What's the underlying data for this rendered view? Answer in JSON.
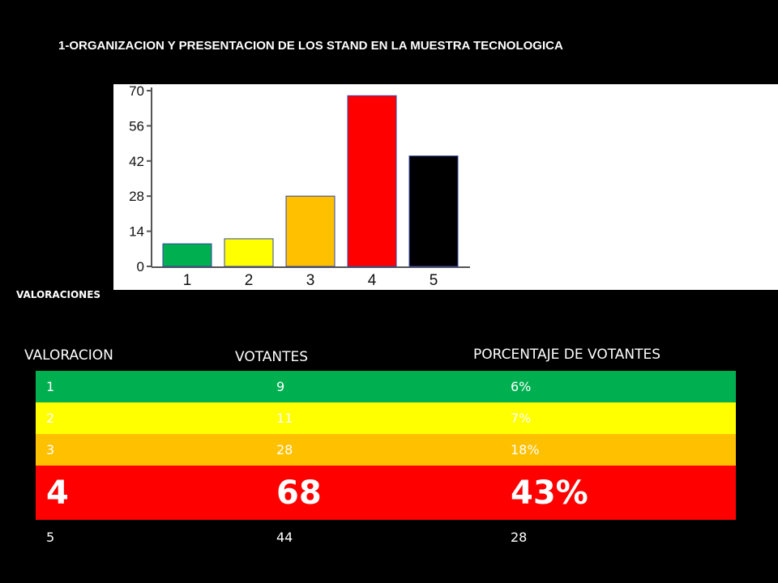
{
  "title": "1-ORGANIZACION Y PRESENTACION DE LOS STAND EN LA MUESTRA TECNOLOGICA",
  "valoraciones_label": "VALORACIONES",
  "chart_data": {
    "type": "bar",
    "categories": [
      "1",
      "2",
      "3",
      "4",
      "5"
    ],
    "values": [
      9,
      11,
      28,
      68,
      44
    ],
    "colors": [
      "#00b050",
      "#ffff00",
      "#ffc000",
      "#ff0000",
      "#000000"
    ],
    "ylim": [
      0,
      70
    ],
    "yticks": [
      0,
      14,
      28,
      42,
      56,
      70
    ],
    "grid": false,
    "legend": "none"
  },
  "table": {
    "headers": {
      "valoracion": "VALORACION",
      "votantes": "VOTANTES",
      "porcentaje": "PORCENTAJE DE  VOTANTES"
    },
    "rows": [
      {
        "valoracion": "1",
        "votantes": "9",
        "porcentaje": "6%",
        "bg": "#00b050",
        "text": "#ffffff"
      },
      {
        "valoracion": "2",
        "votantes": "11",
        "porcentaje": "7%",
        "bg": "#ffff00",
        "text": "#ffffff"
      },
      {
        "valoracion": "3",
        "votantes": "28",
        "porcentaje": "18%",
        "bg": "#ffc000",
        "text": "#ffffff"
      },
      {
        "valoracion": "4",
        "votantes": "68",
        "porcentaje": "43%",
        "bg": "#ff0000",
        "text": "#ffffff"
      },
      {
        "valoracion": "5",
        "votantes": "44",
        "porcentaje": "28",
        "bg": "#000000",
        "text": "#ffffff"
      }
    ]
  }
}
